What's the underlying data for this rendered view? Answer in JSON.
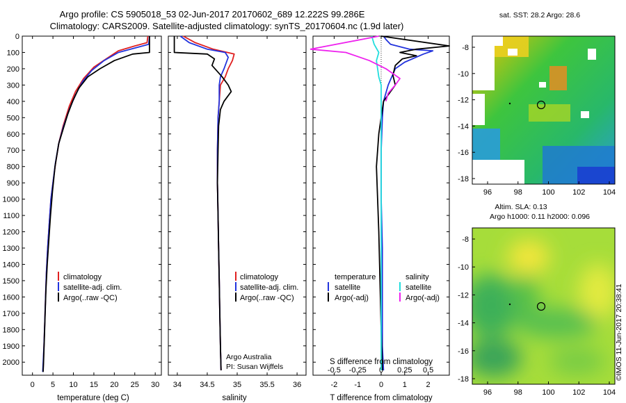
{
  "header": {
    "line1": "Argo profile: CS 5905018_53 02-Jun-2017 20170602_689 12.222S 99.286E",
    "line2": "Climatology: CARS2009. Satellite-adjusted climatology: synTS_20170604.nc (1.9d later)"
  },
  "colors": {
    "climatology": "#e02020",
    "satellite": "#2233dd",
    "argo": "#000000",
    "sat_salinity": "#22dddd",
    "argo_salinity": "#ee22ee"
  },
  "chart_data": [
    {
      "id": "temperature",
      "type": "line",
      "xlabel": "temperature (deg C)",
      "xlim": [
        -2.5,
        31.5
      ],
      "xticks": [
        0,
        5,
        10,
        15,
        20,
        25,
        30
      ],
      "xtick_labels": [
        "0",
        "5",
        "10",
        "15",
        "20",
        "25",
        "30"
      ],
      "ylim": [
        0,
        2080
      ],
      "yticks": [
        0,
        100,
        200,
        300,
        400,
        500,
        600,
        700,
        800,
        900,
        1000,
        1100,
        1200,
        1300,
        1400,
        1500,
        1600,
        1700,
        1800,
        1900,
        2000
      ],
      "ytick_labels": [
        "0",
        "100",
        "200",
        "300",
        "400",
        "500",
        "600",
        "700",
        "800",
        "900",
        "1000",
        "1100",
        "1200",
        "1300",
        "1400",
        "1500",
        "1600",
        "1700",
        "1800",
        "1900",
        "2000"
      ],
      "legend": [
        "climatology",
        "satellite-adj. clim.",
        "Argo(..raw -QC)"
      ],
      "series": [
        {
          "name": "climatology",
          "color": "#e02020",
          "points": [
            [
              28.2,
              0
            ],
            [
              28.0,
              40
            ],
            [
              25.0,
              60
            ],
            [
              21.0,
              90
            ],
            [
              18.0,
              140
            ],
            [
              15.0,
              190
            ],
            [
              12.5,
              260
            ],
            [
              10.5,
              340
            ],
            [
              9.0,
              430
            ],
            [
              7.5,
              550
            ],
            [
              6.5,
              650
            ],
            [
              5.7,
              770
            ],
            [
              5.0,
              900
            ],
            [
              4.5,
              1000
            ],
            [
              4.1,
              1150
            ],
            [
              3.7,
              1300
            ],
            [
              3.4,
              1450
            ],
            [
              3.2,
              1600
            ],
            [
              3.0,
              1750
            ],
            [
              2.8,
              1900
            ],
            [
              2.6,
              2050
            ]
          ]
        },
        {
          "name": "satellite-adj. clim.",
          "color": "#2233dd",
          "points": [
            [
              28.6,
              0
            ],
            [
              28.4,
              50
            ],
            [
              25.5,
              70
            ],
            [
              21.0,
              100
            ],
            [
              17.5,
              150
            ],
            [
              14.5,
              210
            ],
            [
              12.2,
              280
            ],
            [
              10.5,
              360
            ],
            [
              9.0,
              450
            ],
            [
              7.5,
              560
            ],
            [
              6.4,
              660
            ],
            [
              5.6,
              780
            ],
            [
              5.0,
              900
            ],
            [
              4.5,
              1000
            ],
            [
              4.1,
              1150
            ],
            [
              3.7,
              1300
            ],
            [
              3.4,
              1450
            ],
            [
              3.2,
              1600
            ],
            [
              3.0,
              1750
            ],
            [
              2.8,
              1900
            ],
            [
              2.5,
              2060
            ]
          ]
        },
        {
          "name": "Argo(..raw -QC)",
          "color": "#000000",
          "points": [
            [
              28.6,
              0
            ],
            [
              28.6,
              100
            ],
            [
              24.5,
              110
            ],
            [
              20.0,
              150
            ],
            [
              16.5,
              200
            ],
            [
              13.5,
              250
            ],
            [
              11.3,
              320
            ],
            [
              9.8,
              400
            ],
            [
              8.6,
              480
            ],
            [
              7.5,
              570
            ],
            [
              6.4,
              660
            ],
            [
              5.5,
              800
            ],
            [
              4.9,
              950
            ],
            [
              4.4,
              1100
            ],
            [
              4.0,
              1250
            ],
            [
              3.6,
              1400
            ],
            [
              3.3,
              1550
            ],
            [
              3.1,
              1700
            ],
            [
              2.9,
              1850
            ],
            [
              2.7,
              2000
            ],
            [
              2.6,
              2060
            ]
          ]
        }
      ]
    },
    {
      "id": "salinity",
      "type": "line",
      "xlabel": "salinity",
      "xlim": [
        33.85,
        36.15
      ],
      "xticks": [
        34,
        34.5,
        35,
        35.5,
        36
      ],
      "xtick_labels": [
        "34",
        "34.5",
        "35",
        "35.5",
        "36"
      ],
      "ylim": [
        0,
        2080
      ],
      "legend": [
        "climatology",
        "satellite-adj. clim.",
        "Argo(..raw -QC)"
      ],
      "annotations": [
        "Argo Australia",
        "PI: Susan Wijffels"
      ],
      "series": [
        {
          "name": "climatology",
          "color": "#e02020",
          "points": [
            [
              34.1,
              0
            ],
            [
              34.3,
              40
            ],
            [
              34.6,
              80
            ],
            [
              34.95,
              110
            ],
            [
              34.92,
              150
            ],
            [
              34.85,
              200
            ],
            [
              34.8,
              250
            ],
            [
              34.72,
              300
            ],
            [
              34.7,
              400
            ],
            [
              34.68,
              500
            ],
            [
              34.67,
              700
            ],
            [
              34.67,
              900
            ],
            [
              34.68,
              1100
            ],
            [
              34.69,
              1300
            ],
            [
              34.7,
              1500
            ],
            [
              34.71,
              1700
            ],
            [
              34.72,
              1900
            ],
            [
              34.73,
              2050
            ]
          ]
        },
        {
          "name": "satellite-adj. clim.",
          "color": "#2233dd",
          "points": [
            [
              34.05,
              0
            ],
            [
              34.2,
              40
            ],
            [
              34.5,
              80
            ],
            [
              34.8,
              100
            ],
            [
              34.85,
              130
            ],
            [
              34.78,
              200
            ],
            [
              34.72,
              250
            ],
            [
              34.7,
              300
            ],
            [
              34.7,
              400
            ],
            [
              34.68,
              500
            ],
            [
              34.67,
              700
            ],
            [
              34.67,
              900
            ],
            [
              34.68,
              1100
            ],
            [
              34.69,
              1300
            ],
            [
              34.7,
              1500
            ],
            [
              34.71,
              1700
            ],
            [
              34.72,
              1900
            ],
            [
              34.73,
              2050
            ]
          ]
        },
        {
          "name": "Argo(..raw -QC)",
          "color": "#000000",
          "points": [
            [
              33.95,
              0
            ],
            [
              33.95,
              100
            ],
            [
              34.5,
              110
            ],
            [
              34.62,
              140
            ],
            [
              34.58,
              180
            ],
            [
              34.75,
              250
            ],
            [
              34.85,
              300
            ],
            [
              34.9,
              340
            ],
            [
              34.78,
              400
            ],
            [
              34.72,
              450
            ],
            [
              34.69,
              550
            ],
            [
              34.68,
              700
            ],
            [
              34.67,
              900
            ],
            [
              34.68,
              1100
            ],
            [
              34.69,
              1300
            ],
            [
              34.7,
              1500
            ],
            [
              34.71,
              1700
            ],
            [
              34.72,
              1900
            ],
            [
              34.73,
              2050
            ]
          ]
        }
      ]
    },
    {
      "id": "difference",
      "type": "line",
      "xlabel": "T difference from climatology",
      "xlabel_top": "S difference from climatology",
      "xlim": [
        -2.9,
        2.9
      ],
      "xticks": [
        -2,
        -1,
        0,
        1,
        2
      ],
      "xtick_labels": [
        "-2",
        "-1",
        "0",
        "1",
        "2"
      ],
      "sticks_values": [
        -0.5,
        -0.25,
        0,
        0.25,
        0.5
      ],
      "stick_labels": [
        "-0.5",
        "-0.25",
        "0",
        "0.25",
        "0.5"
      ],
      "ylim": [
        0,
        2080
      ],
      "legend_left_title": "temperature",
      "legend_left": [
        "satellite",
        "Argo(-adj)"
      ],
      "legend_right_title": "salinity",
      "legend_right": [
        "satellite",
        "Argo(-adj)"
      ],
      "series": [
        {
          "name": "temperature satellite",
          "color": "#2233dd",
          "points": [
            [
              0.1,
              0
            ],
            [
              0.2,
              20
            ],
            [
              0.4,
              50
            ],
            [
              1.2,
              80
            ],
            [
              2.2,
              90
            ],
            [
              1.8,
              110
            ],
            [
              1.0,
              160
            ],
            [
              0.6,
              200
            ],
            [
              0.3,
              300
            ],
            [
              0.1,
              400
            ],
            [
              0.05,
              500
            ],
            [
              0,
              700
            ],
            [
              0,
              1000
            ],
            [
              0.05,
              1300
            ],
            [
              0.05,
              1600
            ],
            [
              0.05,
              1900
            ],
            [
              0.1,
              2050
            ]
          ]
        },
        {
          "name": "temperature Argo(-adj)",
          "color": "#000000",
          "points": [
            [
              0,
              0
            ],
            [
              2.9,
              60
            ],
            [
              1.5,
              80
            ],
            [
              0.8,
              100
            ],
            [
              1.5,
              120
            ],
            [
              0.9,
              140
            ],
            [
              0.6,
              180
            ],
            [
              0.5,
              240
            ],
            [
              0.6,
              300
            ],
            [
              0.3,
              360
            ],
            [
              0.1,
              400
            ],
            [
              -0.1,
              600
            ],
            [
              -0.2,
              800
            ],
            [
              -0.15,
              1000
            ],
            [
              -0.1,
              1200
            ],
            [
              -0.05,
              1500
            ],
            [
              0,
              1800
            ],
            [
              0.05,
              2050
            ]
          ]
        },
        {
          "name": "salinity satellite",
          "color": "#22dddd",
          "points": [
            [
              -0.4,
              0
            ],
            [
              -0.3,
              50
            ],
            [
              -0.1,
              100
            ],
            [
              -0.2,
              150
            ],
            [
              -0.1,
              250
            ],
            [
              0,
              300
            ],
            [
              0,
              500
            ],
            [
              0,
              800
            ],
            [
              0,
              1100
            ],
            [
              0,
              1500
            ],
            [
              0,
              2050
            ]
          ]
        },
        {
          "name": "salinity Argo(-adj)",
          "color": "#ee22ee",
          "points": [
            [
              -0.1,
              0
            ],
            [
              -3.0,
              80
            ],
            [
              -1.5,
              100
            ],
            [
              -0.5,
              150
            ],
            [
              0.2,
              200
            ],
            [
              0.8,
              260
            ],
            [
              0.6,
              300
            ],
            [
              0.3,
              350
            ],
            [
              0.2,
              400
            ]
          ]
        }
      ]
    }
  ],
  "maps": {
    "sst": {
      "title": "sat. SST: 28.2 Argo: 28.6",
      "xticks": [
        "96",
        "98",
        "100",
        "102",
        "104"
      ],
      "yticks": [
        "-8",
        "-10",
        "-12",
        "-14",
        "-16",
        "-18"
      ]
    },
    "sla": {
      "title_line1": "Altim. SLA: 0.13",
      "title_line2": "Argo h1000: 0.11 h2000: 0.096",
      "xticks": [
        "96",
        "98",
        "100",
        "102",
        "104"
      ],
      "yticks": [
        "-8",
        "-10",
        "-12",
        "-14",
        "-16",
        "-18"
      ]
    }
  },
  "footer": {
    "credit": "©IMOS 11-Jun-2017 20:38:41"
  }
}
